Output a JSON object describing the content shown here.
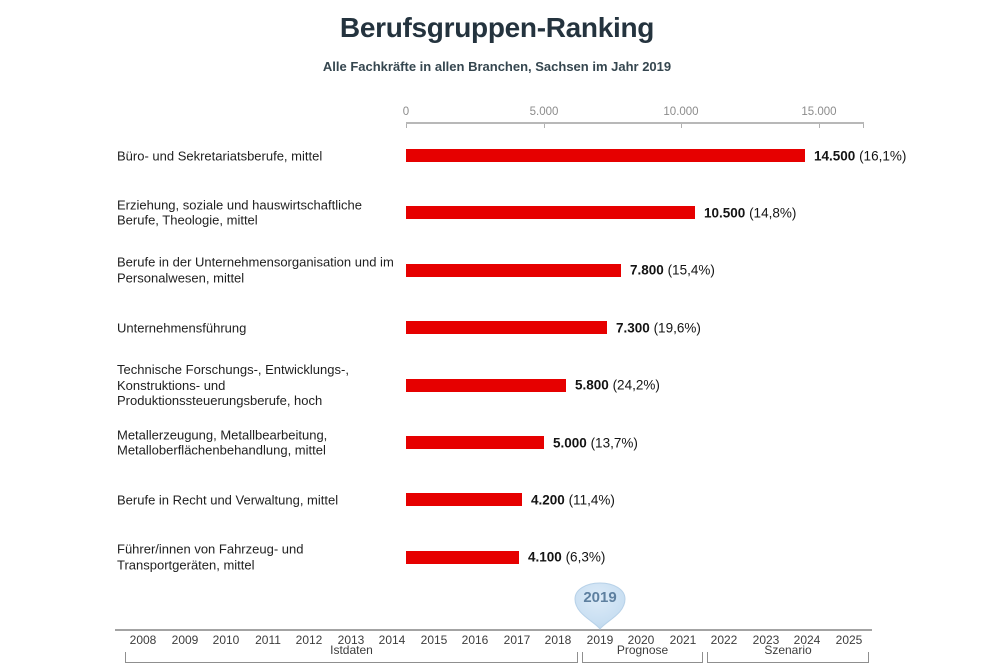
{
  "header": {
    "title": "Berufsgruppen-Ranking",
    "subtitle": "Alle Fachkräfte in allen Branchen, Sachsen im Jahr 2019"
  },
  "chart_data": {
    "type": "bar",
    "orientation": "horizontal",
    "title": "Berufsgruppen-Ranking",
    "subtitle": "Alle Fachkräfte in allen Branchen, Sachsen im Jahr 2019",
    "xlabel": "",
    "ylabel": "",
    "xlim": [
      0,
      16600
    ],
    "grid": false,
    "bar_color": "#e60000",
    "axis_ticks": [
      {
        "value": 0,
        "label": "0"
      },
      {
        "value": 5000,
        "label": "5.000"
      },
      {
        "value": 10000,
        "label": "10.000"
      },
      {
        "value": 15000,
        "label": "15.000"
      }
    ],
    "bars": [
      {
        "label": "Büro- und Sekretariatsberufe, mittel",
        "value": 14500,
        "value_label": "14.500",
        "share_label": "(16,1%)"
      },
      {
        "label": "Erziehung, soziale und hauswirtschaftliche Berufe, Theologie, mittel",
        "value": 10500,
        "value_label": "10.500",
        "share_label": "(14,8%)"
      },
      {
        "label": "Berufe in der Unternehmensorganisation und im Personalwesen, mittel",
        "value": 7800,
        "value_label": "7.800",
        "share_label": "(15,4%)"
      },
      {
        "label": "Unternehmensführung",
        "value": 7300,
        "value_label": "7.300",
        "share_label": "(19,6%)"
      },
      {
        "label": "Technische Forschungs-, Entwicklungs-, Konstruktions- und Produktionssteuerungsberufe, hoch",
        "value": 5800,
        "value_label": "5.800",
        "share_label": "(24,2%)"
      },
      {
        "label": "Metallerzeugung, Metallbearbeitung, Metalloberflächenbehandlung, mittel",
        "value": 5000,
        "value_label": "5.000",
        "share_label": "(13,7%)"
      },
      {
        "label": "Berufe in Recht und Verwaltung, mittel",
        "value": 4200,
        "value_label": "4.200",
        "share_label": "(11,4%)"
      },
      {
        "label": "Führer/innen von Fahrzeug- und Transportgeräten, mittel",
        "value": 4100,
        "value_label": "4.100",
        "share_label": "(6,3%)"
      }
    ]
  },
  "timeline": {
    "years": [
      "2008",
      "2009",
      "2010",
      "2011",
      "2012",
      "2013",
      "2014",
      "2015",
      "2016",
      "2017",
      "2018",
      "2019",
      "2020",
      "2021",
      "2022",
      "2023",
      "2024",
      "2025"
    ],
    "selected_year": "2019",
    "segments": [
      {
        "label": "Istdaten",
        "from": "2008",
        "to": "2018"
      },
      {
        "label": "Prognose",
        "from": "2019",
        "to": "2021"
      },
      {
        "label": "Szenario",
        "from": "2022",
        "to": "2025"
      }
    ]
  },
  "colors": {
    "bar": "#e60000",
    "title_text": "#24333e",
    "axis_text": "#8c8c8c",
    "marker_fill": "#c9dff2",
    "marker_border": "#b7d1e8",
    "marker_text": "#5e80a0"
  }
}
